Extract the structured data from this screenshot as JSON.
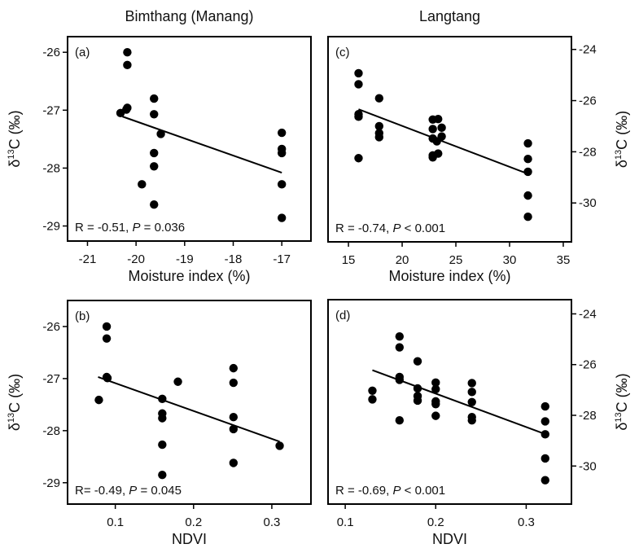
{
  "chart_data": [
    {
      "panel": "(a)",
      "type": "scatter",
      "title": "Bimthang (Manang)",
      "xlabel": "Moisture index (%)",
      "ylabel": {
        "prefix": "δ",
        "sup": "13",
        "suffix": "C (‰)"
      },
      "xlim": [
        -21.41,
        -16.4
      ],
      "ylim": [
        -29.26,
        -25.73
      ],
      "xticks": [
        -21,
        -20,
        -19,
        -18,
        -17
      ],
      "yticks": [
        -26,
        -27,
        -28,
        -29
      ],
      "y_axis_side": "left",
      "grid": false,
      "annotation": {
        "r_text": "R = -0.51, ",
        "p_symbol": "P",
        "p_text": " = 0.036"
      },
      "points": [
        [
          -20.18,
          -26.0
        ],
        [
          -20.18,
          -26.22
        ],
        [
          -20.18,
          -26.96
        ],
        [
          -20.2,
          -26.99
        ],
        [
          -20.32,
          -27.05
        ],
        [
          -19.63,
          -26.8
        ],
        [
          -19.63,
          -27.07
        ],
        [
          -19.49,
          -27.41
        ],
        [
          -19.63,
          -27.74
        ],
        [
          -19.63,
          -27.97
        ],
        [
          -19.88,
          -28.28
        ],
        [
          -19.63,
          -28.63
        ],
        [
          -17.0,
          -27.39
        ],
        [
          -17.0,
          -27.67
        ],
        [
          -17.0,
          -27.74
        ],
        [
          -17.0,
          -28.28
        ],
        [
          -17.0,
          -28.86
        ]
      ],
      "fit_line": {
        "x": [
          -20.28,
          -17.0
        ],
        "y": [
          -27.11,
          -28.08
        ]
      }
    },
    {
      "panel": "(c)",
      "type": "scatter",
      "title": "Langtang",
      "xlabel": "Moisture index (%)",
      "ylabel": {
        "prefix": "δ",
        "sup": "13",
        "suffix": "C (‰)"
      },
      "xlim": [
        13.1,
        35.76
      ],
      "ylim": [
        -31.52,
        -23.5
      ],
      "xticks": [
        15,
        20,
        25,
        30,
        35
      ],
      "yticks": [
        -24,
        -26,
        -28,
        -30
      ],
      "y_axis_side": "right",
      "grid": false,
      "annotation": {
        "r_text": "R = -0.74, ",
        "p_symbol": "P",
        "p_text": " < 0.001"
      },
      "points": [
        [
          15.94,
          -24.93
        ],
        [
          15.94,
          -25.36
        ],
        [
          15.94,
          -26.53
        ],
        [
          15.94,
          -26.63
        ],
        [
          15.94,
          -28.25
        ],
        [
          17.86,
          -25.91
        ],
        [
          17.86,
          -27.0
        ],
        [
          17.86,
          -27.27
        ],
        [
          17.86,
          -27.43
        ],
        [
          22.85,
          -26.74
        ],
        [
          23.35,
          -26.72
        ],
        [
          22.85,
          -27.11
        ],
        [
          23.68,
          -27.06
        ],
        [
          22.85,
          -27.48
        ],
        [
          23.68,
          -27.4
        ],
        [
          23.23,
          -27.59
        ],
        [
          22.85,
          -28.14
        ],
        [
          22.85,
          -28.22
        ],
        [
          23.35,
          -28.07
        ],
        [
          31.71,
          -27.67
        ],
        [
          31.71,
          -28.28
        ],
        [
          31.71,
          -28.78
        ],
        [
          31.71,
          -29.71
        ],
        [
          31.71,
          -30.54
        ]
      ],
      "fit_line": {
        "x": [
          15.94,
          31.71
        ],
        "y": [
          -26.34,
          -28.86
        ]
      }
    },
    {
      "panel": "(b)",
      "type": "scatter",
      "title": "",
      "xlabel": "NDVI",
      "ylabel": {
        "prefix": "δ",
        "sup": "13",
        "suffix": "C (‰)"
      },
      "xlim": [
        0.039,
        0.35
      ],
      "ylim": [
        -29.41,
        -25.5
      ],
      "xticks": [
        0.1,
        0.2,
        0.3
      ],
      "yticks": [
        -26,
        -27,
        -28,
        -29
      ],
      "y_axis_side": "left",
      "grid": false,
      "annotation": {
        "r_text": "R= -0.49, ",
        "p_symbol": "P",
        "p_text": " = 0.045"
      },
      "points": [
        [
          0.089,
          -26.0
        ],
        [
          0.089,
          -26.23
        ],
        [
          0.089,
          -26.97
        ],
        [
          0.09,
          -26.99
        ],
        [
          0.079,
          -27.41
        ],
        [
          0.18,
          -27.06
        ],
        [
          0.16,
          -27.39
        ],
        [
          0.16,
          -27.67
        ],
        [
          0.16,
          -27.76
        ],
        [
          0.16,
          -28.27
        ],
        [
          0.16,
          -28.85
        ],
        [
          0.251,
          -26.8
        ],
        [
          0.251,
          -27.08
        ],
        [
          0.251,
          -27.74
        ],
        [
          0.251,
          -27.97
        ],
        [
          0.251,
          -28.62
        ],
        [
          0.31,
          -28.29
        ]
      ],
      "fit_line": {
        "x": [
          0.078,
          0.31
        ],
        "y": [
          -26.97,
          -28.21
        ]
      }
    },
    {
      "panel": "(d)",
      "type": "scatter",
      "title": "",
      "xlabel": "NDVI",
      "ylabel": {
        "prefix": "δ",
        "sup": "13",
        "suffix": "C (‰)"
      },
      "xlim": [
        0.081,
        0.35
      ],
      "ylim": [
        -31.5,
        -23.44
      ],
      "xticks": [
        0.1,
        0.2,
        0.3
      ],
      "yticks": [
        -24,
        -26,
        -28,
        -30
      ],
      "y_axis_side": "right",
      "grid": false,
      "annotation": {
        "r_text": "R = -0.69, ",
        "p_symbol": "P",
        "p_text": " < 0.001"
      },
      "points": [
        [
          0.13,
          -27.03
        ],
        [
          0.13,
          -27.37
        ],
        [
          0.16,
          -24.89
        ],
        [
          0.16,
          -25.32
        ],
        [
          0.16,
          -26.49
        ],
        [
          0.16,
          -26.6
        ],
        [
          0.16,
          -28.2
        ],
        [
          0.18,
          -25.87
        ],
        [
          0.18,
          -26.94
        ],
        [
          0.18,
          -27.24
        ],
        [
          0.18,
          -27.42
        ],
        [
          0.2,
          -26.71
        ],
        [
          0.2,
          -26.97
        ],
        [
          0.2,
          -27.45
        ],
        [
          0.2,
          -27.56
        ],
        [
          0.2,
          -28.02
        ],
        [
          0.24,
          -26.73
        ],
        [
          0.24,
          -27.08
        ],
        [
          0.24,
          -27.48
        ],
        [
          0.24,
          -28.07
        ],
        [
          0.24,
          -28.2
        ],
        [
          0.321,
          -27.65
        ],
        [
          0.321,
          -28.24
        ],
        [
          0.321,
          -28.75
        ],
        [
          0.321,
          -29.7
        ],
        [
          0.321,
          -30.56
        ]
      ],
      "fit_line": {
        "x": [
          0.13,
          0.321
        ],
        "y": [
          -26.22,
          -28.74
        ]
      }
    }
  ]
}
